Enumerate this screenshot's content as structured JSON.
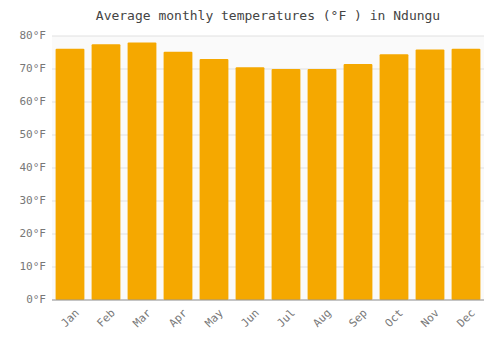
{
  "chart_data": {
    "type": "bar",
    "title": "Average monthly temperatures (°F ) in Ndungu",
    "categories": [
      "Jan",
      "Feb",
      "Mar",
      "Apr",
      "May",
      "Jun",
      "Jul",
      "Aug",
      "Sep",
      "Oct",
      "Nov",
      "Dec"
    ],
    "values": [
      76.1,
      77.5,
      78.0,
      75.2,
      73.0,
      70.5,
      70.0,
      70.0,
      71.5,
      74.5,
      75.9,
      76.1
    ],
    "color": "#F5A800",
    "ylim": [
      0,
      80
    ],
    "yticks": [
      {
        "value": 0,
        "label": "0°F"
      },
      {
        "value": 10,
        "label": "10°F"
      },
      {
        "value": 20,
        "label": "20°F"
      },
      {
        "value": 30,
        "label": "30°F"
      },
      {
        "value": 40,
        "label": "40°F"
      },
      {
        "value": 50,
        "label": "50°F"
      },
      {
        "value": 60,
        "label": "60°F"
      },
      {
        "value": 70,
        "label": "70°F"
      },
      {
        "value": 80,
        "label": "80°F"
      }
    ],
    "grid": true
  }
}
